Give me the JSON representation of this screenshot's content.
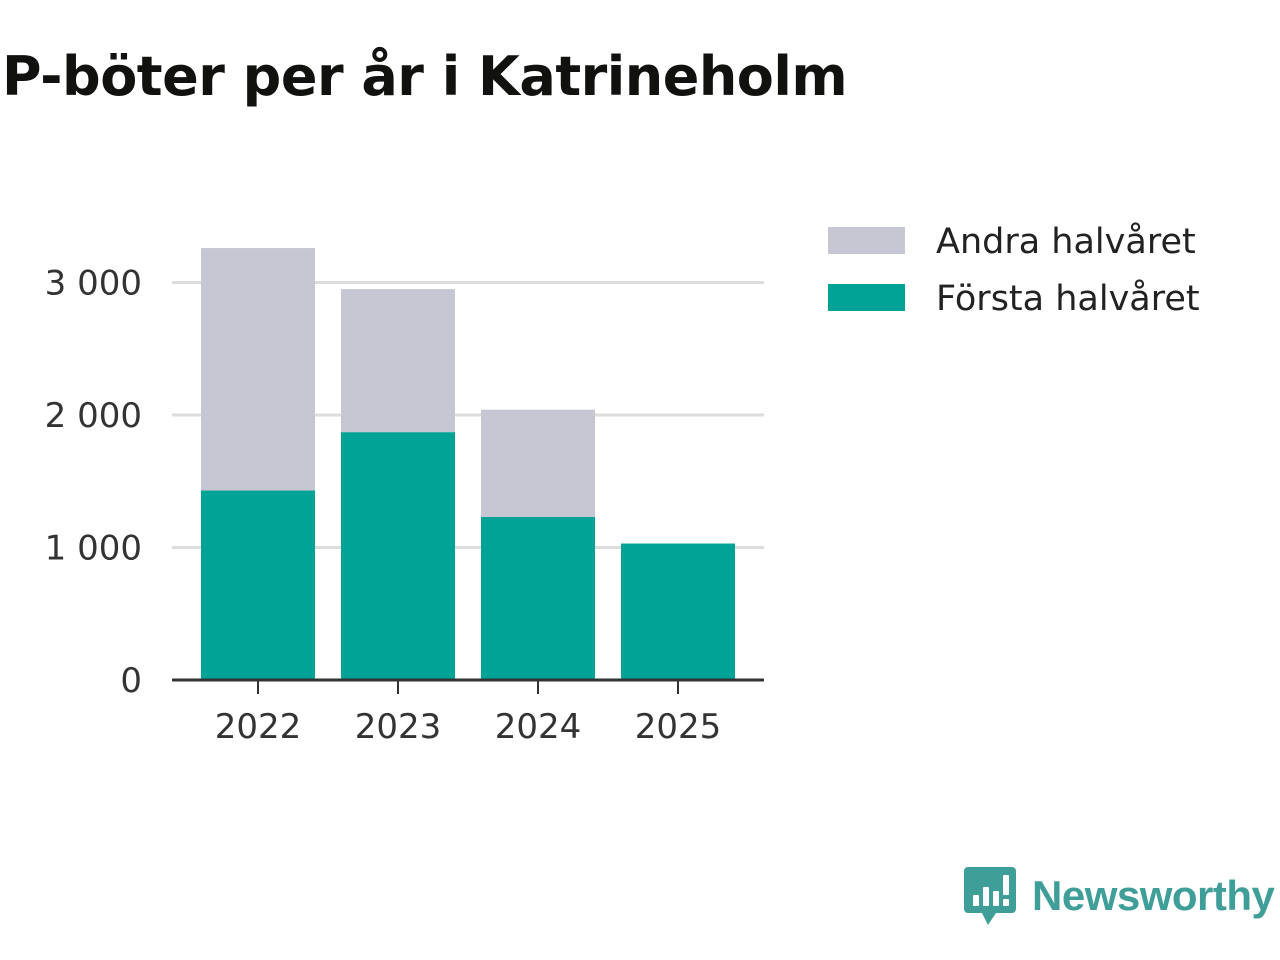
{
  "title": "P-böter per år i Katrineholm",
  "colors": {
    "first_half": "#00a396",
    "second_half": "#c7c7d3",
    "grid": "#dddddd",
    "axis": "#333333",
    "brand": "#3f9e98"
  },
  "chart_data": {
    "type": "bar",
    "stacked": true,
    "title": "P-böter per år i Katrineholm",
    "xlabel": "",
    "ylabel": "",
    "categories": [
      "2022",
      "2023",
      "2024",
      "2025"
    ],
    "series": [
      {
        "name": "Första halvåret",
        "values": [
          1430,
          1870,
          1230,
          1030
        ]
      },
      {
        "name": "Andra halvåret",
        "values": [
          1830,
          1080,
          810,
          0
        ]
      }
    ],
    "ylim": [
      0,
      3300
    ],
    "yticks": [
      0,
      1000,
      2000,
      3000
    ],
    "ytick_labels": [
      "0",
      "1 000",
      "2 000",
      "3 000"
    ],
    "grid": true,
    "legend": {
      "position": "top-right",
      "entries": [
        "Andra halvåret",
        "Första halvåret"
      ]
    }
  },
  "brand": {
    "name": "Newsworthy",
    "logo_icon": "newsworthy-logo-icon"
  }
}
